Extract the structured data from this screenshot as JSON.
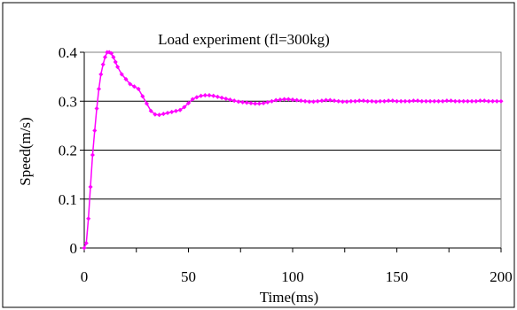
{
  "chart_data": {
    "type": "line",
    "title": "Load experiment (fl=300kg)",
    "xlabel": "Time(ms)",
    "ylabel": "Speed(m/s)",
    "xlim": [
      0,
      200
    ],
    "ylim": [
      0,
      0.4
    ],
    "x_ticks": [
      0,
      50,
      100,
      150,
      200
    ],
    "y_ticks": [
      0,
      0.1,
      0.2,
      0.3,
      0.4
    ],
    "x_tick_labels": [
      "0",
      "50",
      "100",
      "150",
      "200"
    ],
    "y_tick_labels": [
      "0",
      "0.1",
      "0.2",
      "0.3",
      "0.4"
    ],
    "grid": "horizontal",
    "legend": "none",
    "series_color": "#ff00ff",
    "series": [
      {
        "x": [
          0,
          1,
          2,
          3,
          4,
          5,
          6,
          7,
          8,
          9,
          10,
          11,
          12,
          13,
          14,
          15,
          16,
          18,
          20,
          22,
          24,
          26,
          28,
          30,
          32,
          34,
          36,
          38,
          40,
          42,
          44,
          46,
          48,
          50,
          52,
          54,
          56,
          58,
          60,
          62,
          64,
          66,
          68,
          70,
          72,
          74,
          76,
          78,
          80,
          82,
          84,
          86,
          88,
          90,
          92,
          94,
          96,
          98,
          100,
          102,
          104,
          106,
          108,
          110,
          112,
          114,
          116,
          118,
          120,
          122,
          124,
          126,
          128,
          130,
          132,
          134,
          136,
          138,
          140,
          142,
          144,
          146,
          148,
          150,
          152,
          154,
          156,
          158,
          160,
          162,
          164,
          166,
          168,
          170,
          172,
          174,
          176,
          178,
          180,
          182,
          184,
          186,
          188,
          190,
          192,
          194,
          196,
          198,
          200
        ],
        "y": [
          0,
          0.01,
          0.06,
          0.125,
          0.19,
          0.24,
          0.285,
          0.325,
          0.355,
          0.375,
          0.39,
          0.4,
          0.4,
          0.398,
          0.39,
          0.38,
          0.37,
          0.355,
          0.345,
          0.335,
          0.33,
          0.325,
          0.31,
          0.295,
          0.28,
          0.273,
          0.272,
          0.274,
          0.276,
          0.278,
          0.28,
          0.282,
          0.288,
          0.296,
          0.304,
          0.308,
          0.311,
          0.312,
          0.312,
          0.311,
          0.309,
          0.307,
          0.305,
          0.303,
          0.301,
          0.299,
          0.298,
          0.297,
          0.296,
          0.295,
          0.295,
          0.296,
          0.298,
          0.3,
          0.302,
          0.303,
          0.304,
          0.304,
          0.303,
          0.302,
          0.301,
          0.3,
          0.299,
          0.299,
          0.3,
          0.301,
          0.302,
          0.302,
          0.301,
          0.3,
          0.299,
          0.299,
          0.3,
          0.3,
          0.301,
          0.301,
          0.3,
          0.3,
          0.299,
          0.3,
          0.3,
          0.301,
          0.301,
          0.3,
          0.3,
          0.3,
          0.3,
          0.301,
          0.301,
          0.3,
          0.3,
          0.3,
          0.3,
          0.3,
          0.3,
          0.301,
          0.301,
          0.3,
          0.3,
          0.3,
          0.3,
          0.3,
          0.3,
          0.301,
          0.301,
          0.3,
          0.3,
          0.3,
          0.3
        ]
      }
    ]
  }
}
